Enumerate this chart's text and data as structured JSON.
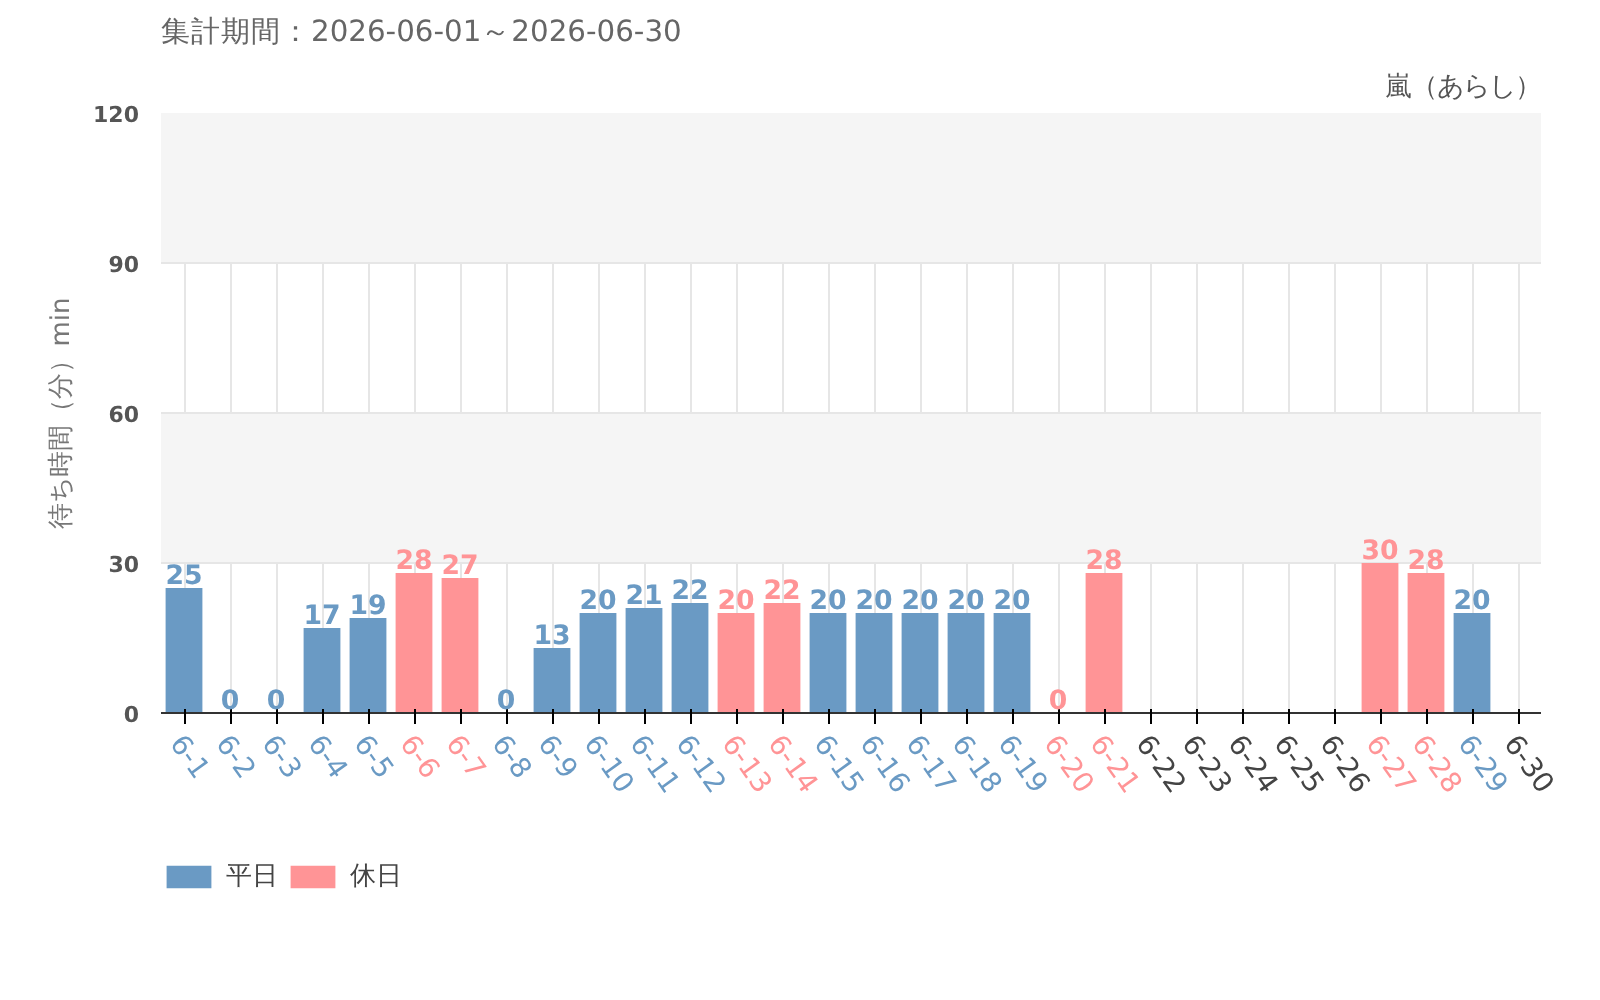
{
  "chart_data": {
    "type": "bar",
    "title": "集計期間：2026-06-01～2026-06-30",
    "subtitle": "嵐（あらし）",
    "ylabel": "待ち時間（分）min",
    "categories": [
      "6-1",
      "6-2",
      "6-3",
      "6-4",
      "6-5",
      "6-6",
      "6-7",
      "6-8",
      "6-9",
      "6-10",
      "6-11",
      "6-12",
      "6-13",
      "6-14",
      "6-15",
      "6-16",
      "6-17",
      "6-18",
      "6-19",
      "6-20",
      "6-21",
      "6-22",
      "6-23",
      "6-24",
      "6-25",
      "6-26",
      "6-27",
      "6-28",
      "6-29",
      "6-30"
    ],
    "series": [
      {
        "name": "平日",
        "color": "#6a9ac4",
        "values": [
          25,
          0,
          0,
          17,
          19,
          null,
          null,
          0,
          13,
          20,
          21,
          22,
          null,
          null,
          20,
          20,
          20,
          20,
          20,
          null,
          null,
          null,
          null,
          null,
          null,
          null,
          null,
          null,
          20,
          null
        ]
      },
      {
        "name": "休日",
        "color": "#ff9496",
        "values": [
          null,
          null,
          null,
          null,
          null,
          28,
          27,
          null,
          null,
          null,
          null,
          null,
          20,
          22,
          null,
          null,
          null,
          null,
          null,
          0,
          28,
          null,
          null,
          null,
          null,
          null,
          30,
          28,
          null,
          null
        ]
      }
    ],
    "ylim": [
      0,
      120
    ],
    "yticks": [
      0,
      30,
      60,
      90,
      120
    ],
    "grid": true,
    "legend": "bottom left",
    "data_labels": true
  }
}
